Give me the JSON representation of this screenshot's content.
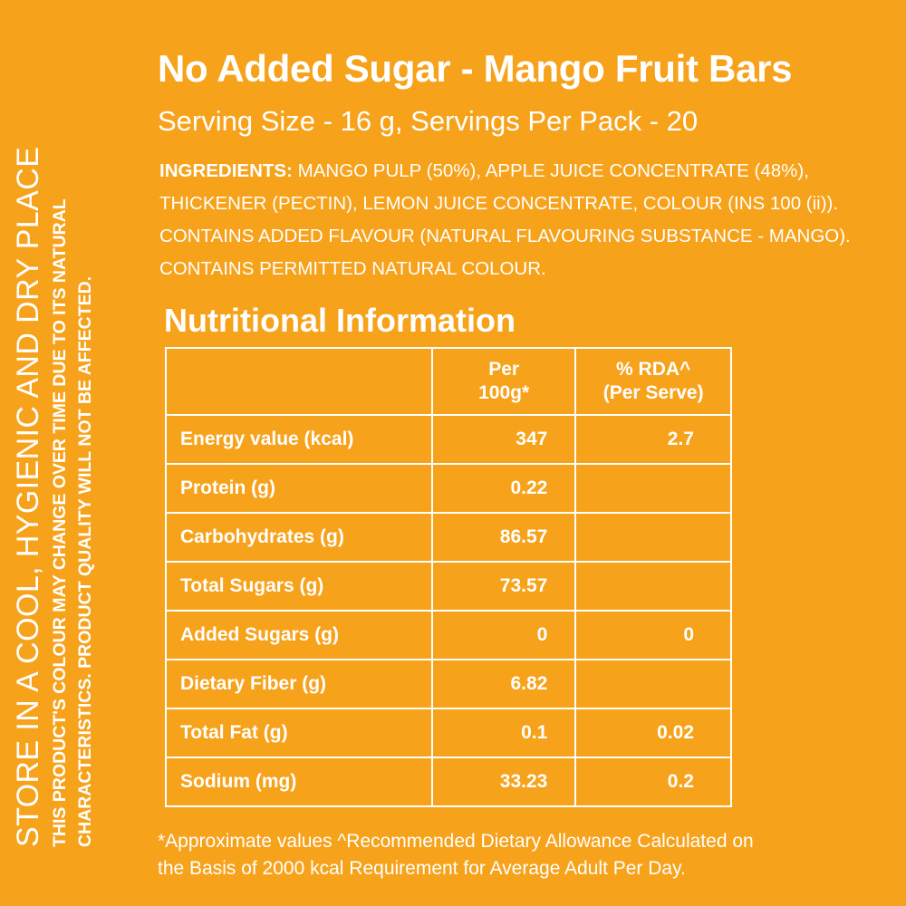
{
  "side": {
    "storage": "STORE IN A COOL, HYGIENIC AND DRY PLACE",
    "note_line1": "THIS PRODUCT'S COLOUR MAY CHANGE OVER TIME DUE TO ITS NATURAL",
    "note_line2": "CHARACTERISTICS. PRODUCT QUALITY WILL NOT BE AFFECTED."
  },
  "title": "No Added Sugar - Mango Fruit Bars",
  "serving": "Serving Size  - 16 g, Servings Per Pack - 20",
  "ingredients": {
    "label": "INGREDIENTS:",
    "line1": "MANGO PULP (50%), APPLE JUICE CONCENTRATE (48%),",
    "line2": "THICKENER (PECTIN), LEMON JUICE CONCENTRATE, COLOUR (INS 100 (ii)).",
    "line3": "CONTAINS ADDED FLAVOUR (NATURAL FLAVOURING SUBSTANCE - MANGO).",
    "line4": "CONTAINS PERMITTED NATURAL COLOUR."
  },
  "nutrition": {
    "title": "Nutritional Information",
    "headers": {
      "name": "",
      "per_line1": "Per",
      "per_line2": "100g*",
      "rda_line1": "% RDA^",
      "rda_line2": "(Per Serve)"
    },
    "rows": [
      {
        "name": "Energy value (kcal)",
        "per": "347",
        "rda": "2.7"
      },
      {
        "name": "Protein (g)",
        "per": "0.22",
        "rda": ""
      },
      {
        "name": "Carbohydrates (g)",
        "per": "86.57",
        "rda": ""
      },
      {
        "name": "Total Sugars (g)",
        "per": "73.57",
        "rda": ""
      },
      {
        "name": "Added Sugars (g)",
        "per": "0",
        "rda": "0"
      },
      {
        "name": "Dietary Fiber (g)",
        "per": "6.82",
        "rda": ""
      },
      {
        "name": "Total Fat (g)",
        "per": "0.1",
        "rda": "0.02"
      },
      {
        "name": "Sodium (mg)",
        "per": "33.23",
        "rda": "0.2"
      }
    ]
  },
  "footnote": {
    "line1": "*Approximate values ^Recommended Dietary Allowance Calculated on",
    "line2": "the Basis of 2000 kcal Requirement for Average Adult Per Day."
  },
  "colors": {
    "background": "#f7a21b",
    "text": "#ffffff"
  }
}
